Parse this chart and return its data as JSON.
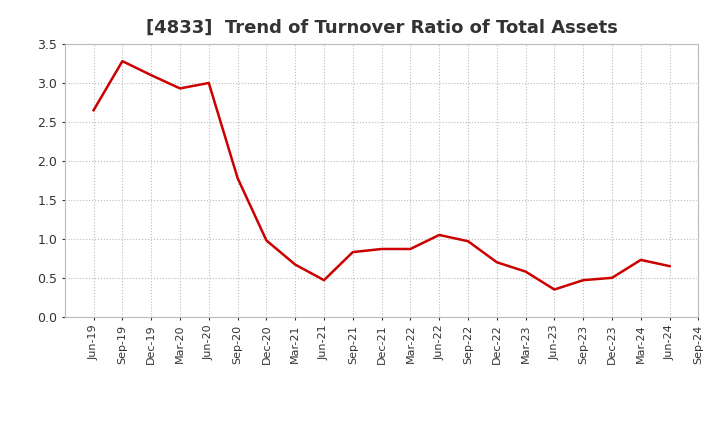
{
  "title": "[4833]  Trend of Turnover Ratio of Total Assets",
  "x_labels": [
    "Jun-19",
    "Sep-19",
    "Dec-19",
    "Mar-20",
    "Jun-20",
    "Sep-20",
    "Dec-20",
    "Mar-21",
    "Jun-21",
    "Sep-21",
    "Dec-21",
    "Mar-22",
    "Jun-22",
    "Sep-22",
    "Dec-22",
    "Mar-23",
    "Jun-23",
    "Sep-23",
    "Dec-23",
    "Mar-24",
    "Jun-24",
    "Sep-24"
  ],
  "y_values": [
    2.65,
    3.28,
    3.1,
    2.93,
    3.0,
    1.78,
    0.98,
    0.67,
    0.47,
    0.83,
    0.87,
    0.87,
    1.05,
    0.97,
    0.7,
    0.58,
    0.35,
    0.47,
    0.5,
    0.73,
    0.65,
    null
  ],
  "line_color": "#cc0000",
  "background_color": "#ffffff",
  "ylim": [
    0.0,
    3.5
  ],
  "yticks": [
    0.0,
    0.5,
    1.0,
    1.5,
    2.0,
    2.5,
    3.0,
    3.5
  ],
  "title_fontsize": 13,
  "title_color": "#333333",
  "grid_color": "#bbbbbb",
  "grid_linestyle": ":"
}
